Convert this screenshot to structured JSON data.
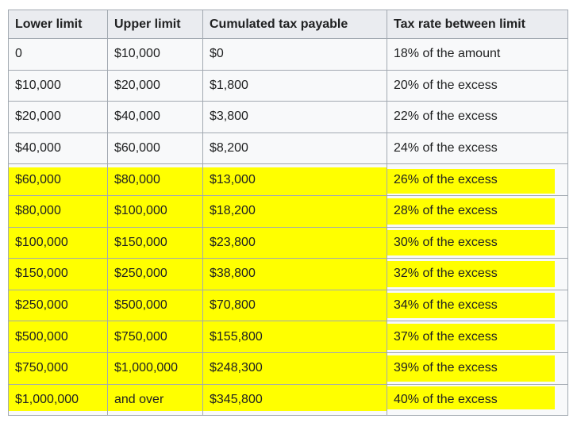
{
  "table": {
    "columns": [
      "Lower limit",
      "Upper limit",
      "Cumulated tax payable",
      "Tax rate between limit"
    ],
    "rows": [
      {
        "cells": [
          "0",
          "$10,000",
          "$0",
          "18% of the amount"
        ],
        "highlighted": false
      },
      {
        "cells": [
          "$10,000",
          "$20,000",
          "$1,800",
          "20% of the excess"
        ],
        "highlighted": false
      },
      {
        "cells": [
          "$20,000",
          "$40,000",
          "$3,800",
          "22% of the excess"
        ],
        "highlighted": false
      },
      {
        "cells": [
          "$40,000",
          "$60,000",
          "$8,200",
          "24% of the excess"
        ],
        "highlighted": false
      },
      {
        "cells": [
          "$60,000",
          "$80,000",
          "$13,000",
          "26% of the excess"
        ],
        "highlighted": true
      },
      {
        "cells": [
          "$80,000",
          "$100,000",
          "$18,200",
          "28% of the excess"
        ],
        "highlighted": true
      },
      {
        "cells": [
          "$100,000",
          "$150,000",
          "$23,800",
          "30% of the excess"
        ],
        "highlighted": true
      },
      {
        "cells": [
          "$150,000",
          "$250,000",
          "$38,800",
          "32% of the excess"
        ],
        "highlighted": true
      },
      {
        "cells": [
          "$250,000",
          "$500,000",
          "$70,800",
          "34% of the excess"
        ],
        "highlighted": true
      },
      {
        "cells": [
          "$500,000",
          "$750,000",
          "$155,800",
          "37% of the excess"
        ],
        "highlighted": true
      },
      {
        "cells": [
          "$750,000",
          "$1,000,000",
          "$248,300",
          "39% of the excess"
        ],
        "highlighted": true
      },
      {
        "cells": [
          "$1,000,000",
          "and over",
          "$345,800",
          "40% of the excess"
        ],
        "highlighted": true
      }
    ],
    "colors": {
      "page_bg": "#ffffff",
      "header_bg": "#eaecf0",
      "row_bg": "#f8f9fa",
      "border": "#a2a9b1",
      "text": "#202122",
      "highlight": "#ffff00"
    }
  }
}
